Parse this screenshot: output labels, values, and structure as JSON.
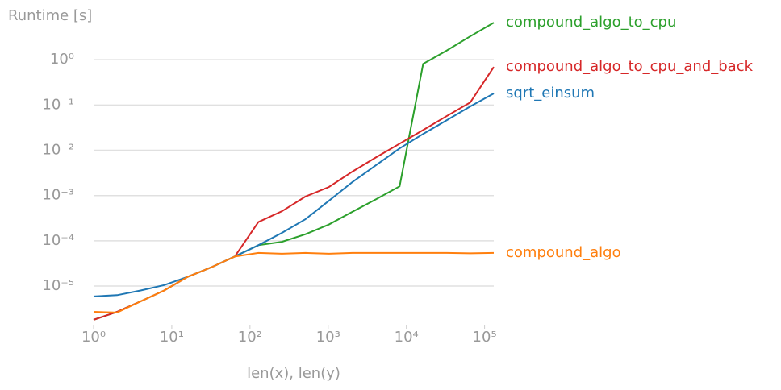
{
  "chart_data": {
    "type": "line",
    "y_label": "Runtime [s]",
    "x_label": "len(x), len(y)",
    "x": [
      1,
      2,
      4,
      8,
      16,
      32,
      64,
      128,
      256,
      512,
      1024,
      2048,
      4096,
      8192,
      16384,
      32768,
      65536,
      131072
    ],
    "xlog": true,
    "ylog": true,
    "grid": "y",
    "xlim": [
      1,
      131072
    ],
    "ylim": [
      1.4e-06,
      10
    ],
    "xticks": [
      {
        "value": 1,
        "label": "10⁰"
      },
      {
        "value": 10,
        "label": "10¹"
      },
      {
        "value": 100,
        "label": "10²"
      },
      {
        "value": 1000,
        "label": "10³"
      },
      {
        "value": 10000,
        "label": "10⁴"
      },
      {
        "value": 100000,
        "label": "10⁵"
      }
    ],
    "yticks": [
      {
        "value": 1e-05,
        "label": "10⁻⁵"
      },
      {
        "value": 0.0001,
        "label": "10⁻⁴"
      },
      {
        "value": 0.001,
        "label": "10⁻³"
      },
      {
        "value": 0.01,
        "label": "10⁻²"
      },
      {
        "value": 0.1,
        "label": "10⁻¹"
      },
      {
        "value": 1,
        "label": "10⁰"
      }
    ],
    "series": [
      {
        "name": "compound_algo_to_cpu",
        "color": "#2ca02c",
        "values": [
          1.8e-06,
          2.7e-06,
          4.6e-06,
          8e-06,
          1.6e-05,
          2.6e-05,
          4.5e-05,
          8e-05,
          9.5e-05,
          0.00014,
          0.00023,
          0.00044,
          0.00083,
          0.0016,
          0.81,
          1.6,
          3.3,
          6.6
        ]
      },
      {
        "name": "compound_algo_to_cpu_and_back",
        "color": "#d62728",
        "values": [
          1.8e-06,
          2.7e-06,
          4.6e-06,
          8e-06,
          1.6e-05,
          2.6e-05,
          4.5e-05,
          0.00026,
          0.00045,
          0.00095,
          0.00155,
          0.0034,
          0.007,
          0.014,
          0.028,
          0.057,
          0.114,
          0.69
        ]
      },
      {
        "name": "sqrt_einsum",
        "color": "#1f77b4",
        "values": [
          5.9e-06,
          6.3e-06,
          8e-06,
          1.05e-05,
          1.6e-05,
          2.6e-05,
          4.5e-05,
          8e-05,
          0.00015,
          0.0003,
          0.00077,
          0.002,
          0.0047,
          0.011,
          0.023,
          0.046,
          0.093,
          0.18
        ]
      },
      {
        "name": "compound_algo",
        "color": "#ff7f0e",
        "values": [
          2.7e-06,
          2.6e-06,
          4.6e-06,
          8e-06,
          1.6e-05,
          2.6e-05,
          4.5e-05,
          5.4e-05,
          5.2e-05,
          5.4e-05,
          5.2e-05,
          5.4e-05,
          5.4e-05,
          5.4e-05,
          5.4e-05,
          5.4e-05,
          5.3e-05,
          5.4e-05
        ]
      }
    ]
  }
}
